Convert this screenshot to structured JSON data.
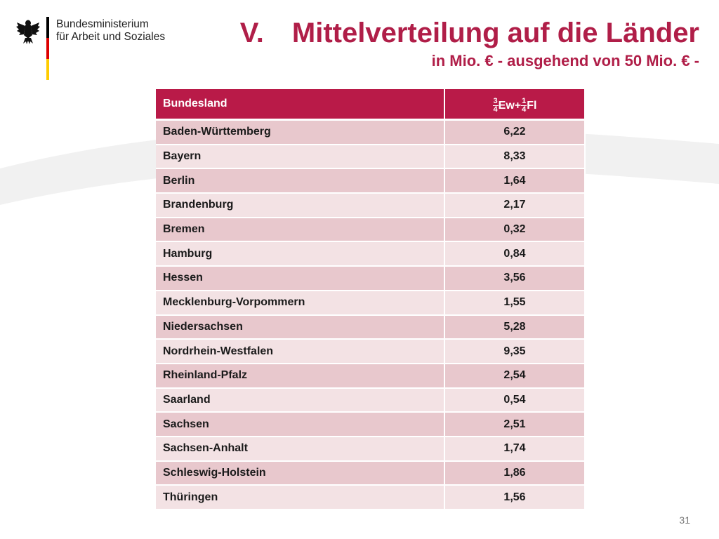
{
  "logo": {
    "line1": "Bundesministerium",
    "line2": "für Arbeit und Soziales",
    "flag_colors": [
      "#000000",
      "#dd0000",
      "#ffcc00"
    ]
  },
  "title": {
    "number": "V.",
    "main": "Mittelverteilung auf die Länder",
    "subtitle": "in Mio. € - ausgehend von 50 Mio. € -"
  },
  "table": {
    "header_bundesland": "Bundesland",
    "formula": {
      "frac1_num": "3",
      "frac1_den": "4",
      "mid": "Ew+",
      "frac2_num": "1",
      "frac2_den": "4",
      "end": "Fl"
    },
    "rows": [
      {
        "land": "Baden-Württemberg",
        "value": "6,22"
      },
      {
        "land": "Bayern",
        "value": "8,33"
      },
      {
        "land": "Berlin",
        "value": "1,64"
      },
      {
        "land": "Brandenburg",
        "value": "2,17"
      },
      {
        "land": "Bremen",
        "value": "0,32"
      },
      {
        "land": "Hamburg",
        "value": "0,84"
      },
      {
        "land": "Hessen",
        "value": "3,56"
      },
      {
        "land": "Mecklenburg-Vorpommern",
        "value": "1,55"
      },
      {
        "land": "Niedersachsen",
        "value": "5,28"
      },
      {
        "land": "Nordrhein-Westfalen",
        "value": "9,35"
      },
      {
        "land": "Rheinland-Pfalz",
        "value": "2,54"
      },
      {
        "land": "Saarland",
        "value": "0,54"
      },
      {
        "land": "Sachsen",
        "value": "2,51"
      },
      {
        "land": "Sachsen-Anhalt",
        "value": "1,74"
      },
      {
        "land": "Schleswig-Holstein",
        "value": "1,86"
      },
      {
        "land": "Thüringen",
        "value": "1,56"
      }
    ]
  },
  "page_number": "31",
  "colors": {
    "accent": "#b91a48",
    "title": "#b01e48",
    "row_odd": "#e8c8cd",
    "row_even": "#f3e2e4"
  }
}
